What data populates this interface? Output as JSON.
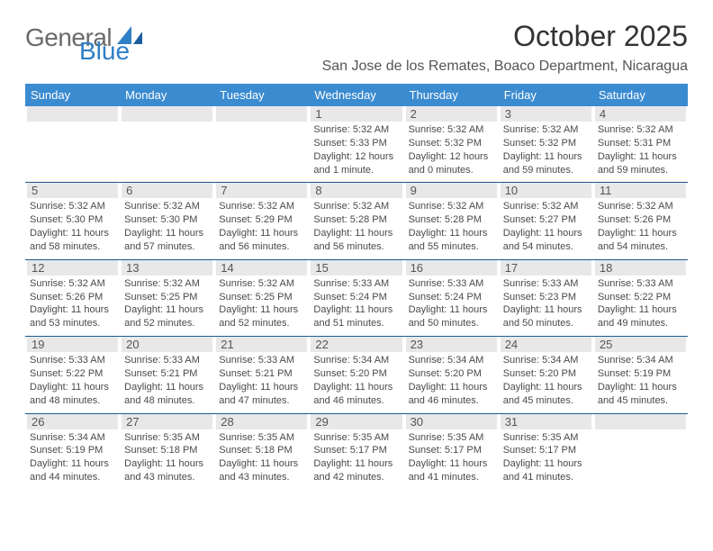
{
  "colors": {
    "header_blue": "#3b8bd0",
    "date_bg": "#e8e8e8",
    "divider": "#1a5a8f",
    "text": "#3a3a3a",
    "muted": "#4a4a4a",
    "white": "#ffffff",
    "logo_gray": "#6a6a6a",
    "logo_blue": "#2f7fc6"
  },
  "logo": {
    "word1": "General",
    "word2": "Blue"
  },
  "header": {
    "month_title": "October 2025",
    "location": "San Jose de los Remates, Boaco Department, Nicaragua"
  },
  "weekdays": [
    "Sunday",
    "Monday",
    "Tuesday",
    "Wednesday",
    "Thursday",
    "Friday",
    "Saturday"
  ],
  "weeks": [
    [
      {
        "date": "",
        "sunrise": "",
        "sunset": "",
        "daylight": ""
      },
      {
        "date": "",
        "sunrise": "",
        "sunset": "",
        "daylight": ""
      },
      {
        "date": "",
        "sunrise": "",
        "sunset": "",
        "daylight": ""
      },
      {
        "date": "1",
        "sunrise": "Sunrise: 5:32 AM",
        "sunset": "Sunset: 5:33 PM",
        "daylight": "Daylight: 12 hours and 1 minute."
      },
      {
        "date": "2",
        "sunrise": "Sunrise: 5:32 AM",
        "sunset": "Sunset: 5:32 PM",
        "daylight": "Daylight: 12 hours and 0 minutes."
      },
      {
        "date": "3",
        "sunrise": "Sunrise: 5:32 AM",
        "sunset": "Sunset: 5:32 PM",
        "daylight": "Daylight: 11 hours and 59 minutes."
      },
      {
        "date": "4",
        "sunrise": "Sunrise: 5:32 AM",
        "sunset": "Sunset: 5:31 PM",
        "daylight": "Daylight: 11 hours and 59 minutes."
      }
    ],
    [
      {
        "date": "5",
        "sunrise": "Sunrise: 5:32 AM",
        "sunset": "Sunset: 5:30 PM",
        "daylight": "Daylight: 11 hours and 58 minutes."
      },
      {
        "date": "6",
        "sunrise": "Sunrise: 5:32 AM",
        "sunset": "Sunset: 5:30 PM",
        "daylight": "Daylight: 11 hours and 57 minutes."
      },
      {
        "date": "7",
        "sunrise": "Sunrise: 5:32 AM",
        "sunset": "Sunset: 5:29 PM",
        "daylight": "Daylight: 11 hours and 56 minutes."
      },
      {
        "date": "8",
        "sunrise": "Sunrise: 5:32 AM",
        "sunset": "Sunset: 5:28 PM",
        "daylight": "Daylight: 11 hours and 56 minutes."
      },
      {
        "date": "9",
        "sunrise": "Sunrise: 5:32 AM",
        "sunset": "Sunset: 5:28 PM",
        "daylight": "Daylight: 11 hours and 55 minutes."
      },
      {
        "date": "10",
        "sunrise": "Sunrise: 5:32 AM",
        "sunset": "Sunset: 5:27 PM",
        "daylight": "Daylight: 11 hours and 54 minutes."
      },
      {
        "date": "11",
        "sunrise": "Sunrise: 5:32 AM",
        "sunset": "Sunset: 5:26 PM",
        "daylight": "Daylight: 11 hours and 54 minutes."
      }
    ],
    [
      {
        "date": "12",
        "sunrise": "Sunrise: 5:32 AM",
        "sunset": "Sunset: 5:26 PM",
        "daylight": "Daylight: 11 hours and 53 minutes."
      },
      {
        "date": "13",
        "sunrise": "Sunrise: 5:32 AM",
        "sunset": "Sunset: 5:25 PM",
        "daylight": "Daylight: 11 hours and 52 minutes."
      },
      {
        "date": "14",
        "sunrise": "Sunrise: 5:32 AM",
        "sunset": "Sunset: 5:25 PM",
        "daylight": "Daylight: 11 hours and 52 minutes."
      },
      {
        "date": "15",
        "sunrise": "Sunrise: 5:33 AM",
        "sunset": "Sunset: 5:24 PM",
        "daylight": "Daylight: 11 hours and 51 minutes."
      },
      {
        "date": "16",
        "sunrise": "Sunrise: 5:33 AM",
        "sunset": "Sunset: 5:24 PM",
        "daylight": "Daylight: 11 hours and 50 minutes."
      },
      {
        "date": "17",
        "sunrise": "Sunrise: 5:33 AM",
        "sunset": "Sunset: 5:23 PM",
        "daylight": "Daylight: 11 hours and 50 minutes."
      },
      {
        "date": "18",
        "sunrise": "Sunrise: 5:33 AM",
        "sunset": "Sunset: 5:22 PM",
        "daylight": "Daylight: 11 hours and 49 minutes."
      }
    ],
    [
      {
        "date": "19",
        "sunrise": "Sunrise: 5:33 AM",
        "sunset": "Sunset: 5:22 PM",
        "daylight": "Daylight: 11 hours and 48 minutes."
      },
      {
        "date": "20",
        "sunrise": "Sunrise: 5:33 AM",
        "sunset": "Sunset: 5:21 PM",
        "daylight": "Daylight: 11 hours and 48 minutes."
      },
      {
        "date": "21",
        "sunrise": "Sunrise: 5:33 AM",
        "sunset": "Sunset: 5:21 PM",
        "daylight": "Daylight: 11 hours and 47 minutes."
      },
      {
        "date": "22",
        "sunrise": "Sunrise: 5:34 AM",
        "sunset": "Sunset: 5:20 PM",
        "daylight": "Daylight: 11 hours and 46 minutes."
      },
      {
        "date": "23",
        "sunrise": "Sunrise: 5:34 AM",
        "sunset": "Sunset: 5:20 PM",
        "daylight": "Daylight: 11 hours and 46 minutes."
      },
      {
        "date": "24",
        "sunrise": "Sunrise: 5:34 AM",
        "sunset": "Sunset: 5:20 PM",
        "daylight": "Daylight: 11 hours and 45 minutes."
      },
      {
        "date": "25",
        "sunrise": "Sunrise: 5:34 AM",
        "sunset": "Sunset: 5:19 PM",
        "daylight": "Daylight: 11 hours and 45 minutes."
      }
    ],
    [
      {
        "date": "26",
        "sunrise": "Sunrise: 5:34 AM",
        "sunset": "Sunset: 5:19 PM",
        "daylight": "Daylight: 11 hours and 44 minutes."
      },
      {
        "date": "27",
        "sunrise": "Sunrise: 5:35 AM",
        "sunset": "Sunset: 5:18 PM",
        "daylight": "Daylight: 11 hours and 43 minutes."
      },
      {
        "date": "28",
        "sunrise": "Sunrise: 5:35 AM",
        "sunset": "Sunset: 5:18 PM",
        "daylight": "Daylight: 11 hours and 43 minutes."
      },
      {
        "date": "29",
        "sunrise": "Sunrise: 5:35 AM",
        "sunset": "Sunset: 5:17 PM",
        "daylight": "Daylight: 11 hours and 42 minutes."
      },
      {
        "date": "30",
        "sunrise": "Sunrise: 5:35 AM",
        "sunset": "Sunset: 5:17 PM",
        "daylight": "Daylight: 11 hours and 41 minutes."
      },
      {
        "date": "31",
        "sunrise": "Sunrise: 5:35 AM",
        "sunset": "Sunset: 5:17 PM",
        "daylight": "Daylight: 11 hours and 41 minutes."
      },
      {
        "date": "",
        "sunrise": "",
        "sunset": "",
        "daylight": ""
      }
    ]
  ]
}
